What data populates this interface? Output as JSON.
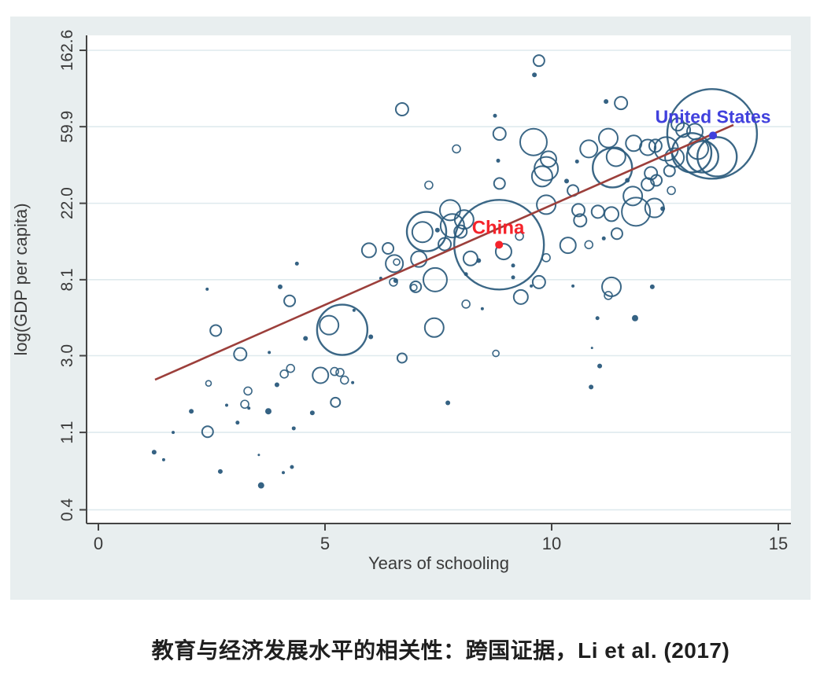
{
  "caption": "教育与经济发展水平的相关性：跨国证据，Li et al. (2017)",
  "chart_data": {
    "type": "scatter",
    "title": "",
    "xlabel": "Years of schooling",
    "ylabel": "log(GDP per capita)",
    "x_ticks": [
      0,
      5,
      10,
      15
    ],
    "y_ticks": [
      162.6,
      59.9,
      22.0,
      8.1,
      3.0,
      1.1,
      0.4
    ],
    "y_scale": "log",
    "xlim": [
      -0.3,
      15.3
    ],
    "ylim": [
      0.32,
      195
    ],
    "grid": "horizontal",
    "colors": {
      "bubble_stroke": "#2a5a7c",
      "trend_line": "#9c3f3b",
      "china": "#f5232b",
      "united_states": "#4040dd",
      "panel_bg": "#e8eeef",
      "plot_bg": "#ffffff",
      "gridline": "#dfeaee",
      "axis": "#444444",
      "tick_text": "#3a3a3a"
    },
    "trend_line": {
      "x1": 1.25,
      "y1": 2.19,
      "x2": 14.01,
      "y2": 61.3
    },
    "annotations": [
      {
        "name": "china",
        "text": "China",
        "x": 8.82,
        "y": 16.0,
        "dot_x": 8.84,
        "dot_y": 12.8,
        "color": "#f5232b",
        "font_px": 24
      },
      {
        "name": "united-states",
        "text": "United States",
        "x": 13.56,
        "y": 68.4,
        "dot_x": 13.56,
        "dot_y": 53.4,
        "color": "#4040dd",
        "font_px": 23
      }
    ],
    "points_format": [
      "years_of_schooling",
      "gdp_per_capita_thousands",
      "radius_px",
      "filled"
    ],
    "points": [
      [
        9.72,
        142,
        7,
        0
      ],
      [
        9.62,
        118,
        3,
        1
      ],
      [
        6.7,
        75.2,
        8,
        0
      ],
      [
        7.29,
        27.9,
        5,
        0
      ],
      [
        8.75,
        69.1,
        2.5,
        1
      ],
      [
        8.85,
        54.6,
        8,
        0
      ],
      [
        8.82,
        38.4,
        2.5,
        1
      ],
      [
        8.85,
        28.5,
        7,
        0
      ],
      [
        7.9,
        44.8,
        5,
        0
      ],
      [
        7.24,
        15.2,
        25,
        0
      ],
      [
        5.97,
        11.9,
        9,
        0
      ],
      [
        6.39,
        12.2,
        7,
        0
      ],
      [
        6.53,
        10.0,
        11,
        0
      ],
      [
        6.58,
        10.2,
        4,
        0
      ],
      [
        4.38,
        10.0,
        2.5,
        1
      ],
      [
        11.2,
        83.3,
        3,
        1
      ],
      [
        11.53,
        81.6,
        8,
        0
      ],
      [
        9.6,
        49.0,
        17,
        0
      ],
      [
        9.93,
        39.2,
        10,
        0
      ],
      [
        9.88,
        34.6,
        15,
        0
      ],
      [
        9.79,
        31.3,
        13,
        0
      ],
      [
        10.56,
        38.0,
        2.5,
        1
      ],
      [
        10.82,
        44.8,
        11,
        0
      ],
      [
        11.25,
        51.6,
        12,
        0
      ],
      [
        11.34,
        35.0,
        25,
        0
      ],
      [
        11.42,
        40.4,
        12,
        0
      ],
      [
        11.67,
        29.7,
        3,
        1
      ],
      [
        11.81,
        48.2,
        10,
        0
      ],
      [
        12.12,
        45.7,
        10,
        0
      ],
      [
        12.29,
        46.7,
        8,
        0
      ],
      [
        12.19,
        32.6,
        8,
        0
      ],
      [
        12.12,
        28.2,
        8,
        0
      ],
      [
        12.31,
        29.7,
        7,
        0
      ],
      [
        12.6,
        33.6,
        7,
        0
      ],
      [
        12.64,
        26.0,
        5,
        0
      ],
      [
        12.78,
        61.7,
        8,
        0
      ],
      [
        12.9,
        57.4,
        9,
        0
      ],
      [
        13.54,
        54.5,
        57,
        0
      ],
      [
        13.16,
        56.2,
        10,
        0
      ],
      [
        13.23,
        44.8,
        13,
        0
      ],
      [
        13.33,
        40.4,
        20,
        0
      ],
      [
        13.65,
        40.4,
        25,
        0
      ],
      [
        12.53,
        44.8,
        15,
        0
      ],
      [
        12.71,
        40.0,
        12,
        0
      ],
      [
        13.09,
        42.6,
        25,
        0
      ],
      [
        7.76,
        20.1,
        13,
        0
      ],
      [
        7.81,
        16.4,
        15,
        0
      ],
      [
        8.07,
        17.8,
        12,
        0
      ],
      [
        7.99,
        15.2,
        8,
        0
      ],
      [
        7.48,
        15.5,
        3,
        1
      ],
      [
        7.15,
        15.1,
        13,
        0
      ],
      [
        8.21,
        10.7,
        9,
        0
      ],
      [
        8.39,
        10.4,
        3,
        1
      ],
      [
        8.94,
        11.7,
        10,
        0
      ],
      [
        8.84,
        12.8,
        57,
        0
      ],
      [
        9.15,
        9.75,
        2.5,
        1
      ],
      [
        9.15,
        8.35,
        2.5,
        1
      ],
      [
        8.11,
        8.71,
        2.5,
        1
      ],
      [
        9.29,
        14.3,
        5,
        0
      ],
      [
        10.36,
        12.7,
        10,
        0
      ],
      [
        9.88,
        10.8,
        5,
        0
      ],
      [
        10.47,
        26.0,
        7,
        0
      ],
      [
        10.59,
        20.1,
        8,
        0
      ],
      [
        10.63,
        17.6,
        8,
        0
      ],
      [
        11.02,
        19.7,
        8,
        0
      ],
      [
        11.32,
        19.1,
        9,
        0
      ],
      [
        11.44,
        14.8,
        7,
        0
      ],
      [
        11.15,
        13.9,
        2.5,
        1
      ],
      [
        10.82,
        12.8,
        5,
        0
      ],
      [
        11.79,
        24.2,
        12,
        0
      ],
      [
        11.86,
        19.7,
        18,
        0
      ],
      [
        12.27,
        20.7,
        12,
        0
      ],
      [
        12.45,
        20.5,
        3,
        1
      ],
      [
        9.88,
        21.6,
        12,
        0
      ],
      [
        9.32,
        6.46,
        9,
        0
      ],
      [
        9.72,
        7.85,
        8,
        0
      ],
      [
        9.55,
        7.46,
        2,
        1
      ],
      [
        10.47,
        7.46,
        2,
        1
      ],
      [
        11.32,
        7.38,
        12,
        0
      ],
      [
        11.25,
        6.59,
        5,
        0
      ],
      [
        12.22,
        7.38,
        3,
        1
      ],
      [
        8.11,
        5.89,
        5,
        0
      ],
      [
        8.47,
        5.54,
        2,
        1
      ],
      [
        7.41,
        4.33,
        12,
        0
      ],
      [
        6.7,
        2.91,
        6,
        0
      ],
      [
        7.43,
        8.1,
        15,
        0
      ],
      [
        7.07,
        10.6,
        10,
        0
      ],
      [
        7.64,
        12.9,
        8,
        0
      ],
      [
        7.0,
        7.38,
        7,
        0
      ],
      [
        6.56,
        8.0,
        3,
        1
      ],
      [
        6.23,
        8.26,
        2,
        1
      ],
      [
        6.51,
        7.85,
        5,
        0
      ],
      [
        6.96,
        7.31,
        4,
        0
      ],
      [
        5.64,
        5.43,
        2,
        1
      ],
      [
        5.38,
        4.21,
        32,
        0
      ],
      [
        5.09,
        4.47,
        12,
        0
      ],
      [
        6.01,
        3.84,
        3,
        1
      ],
      [
        4.57,
        3.76,
        3,
        1
      ],
      [
        4.22,
        6.14,
        7,
        0
      ],
      [
        4.01,
        7.38,
        3,
        1
      ],
      [
        2.4,
        7.16,
        2,
        1
      ],
      [
        2.59,
        4.17,
        7,
        0
      ],
      [
        3.13,
        3.06,
        8,
        0
      ],
      [
        3.77,
        3.13,
        2,
        1
      ],
      [
        4.1,
        2.36,
        5,
        0
      ],
      [
        4.24,
        2.54,
        5,
        0
      ],
      [
        3.94,
        2.05,
        3,
        1
      ],
      [
        4.9,
        2.32,
        10,
        0
      ],
      [
        5.21,
        2.44,
        5,
        0
      ],
      [
        5.33,
        2.41,
        5,
        0
      ],
      [
        5.43,
        2.18,
        5,
        0
      ],
      [
        5.61,
        2.11,
        2,
        1
      ],
      [
        5.23,
        1.63,
        6,
        0
      ],
      [
        4.72,
        1.42,
        3,
        1
      ],
      [
        4.31,
        1.16,
        2.5,
        1
      ],
      [
        3.3,
        1.89,
        5,
        0
      ],
      [
        3.23,
        1.59,
        5,
        0
      ],
      [
        3.32,
        1.51,
        2,
        1
      ],
      [
        3.07,
        1.25,
        2.5,
        1
      ],
      [
        3.75,
        1.45,
        4,
        1
      ],
      [
        2.83,
        1.57,
        2,
        1
      ],
      [
        2.05,
        1.45,
        3,
        1
      ],
      [
        2.43,
        2.09,
        3.5,
        0
      ],
      [
        1.65,
        1.1,
        2,
        1
      ],
      [
        2.41,
        1.11,
        7,
        0
      ],
      [
        1.23,
        0.85,
        3,
        1
      ],
      [
        1.44,
        0.77,
        2,
        1
      ],
      [
        2.69,
        0.66,
        3,
        1
      ],
      [
        3.54,
        0.82,
        1.5,
        1
      ],
      [
        3.59,
        0.55,
        4,
        1
      ],
      [
        4.08,
        0.65,
        2,
        1
      ],
      [
        4.27,
        0.7,
        2.5,
        1
      ],
      [
        8.77,
        3.09,
        4,
        0
      ],
      [
        10.89,
        3.32,
        1.5,
        1
      ],
      [
        11.06,
        2.62,
        3,
        1
      ],
      [
        10.87,
        1.99,
        3,
        1
      ],
      [
        7.71,
        1.62,
        3,
        1
      ],
      [
        11.01,
        4.9,
        2.5,
        1
      ],
      [
        11.84,
        4.9,
        4,
        1
      ],
      [
        10.33,
        29.4,
        3,
        1
      ]
    ]
  }
}
